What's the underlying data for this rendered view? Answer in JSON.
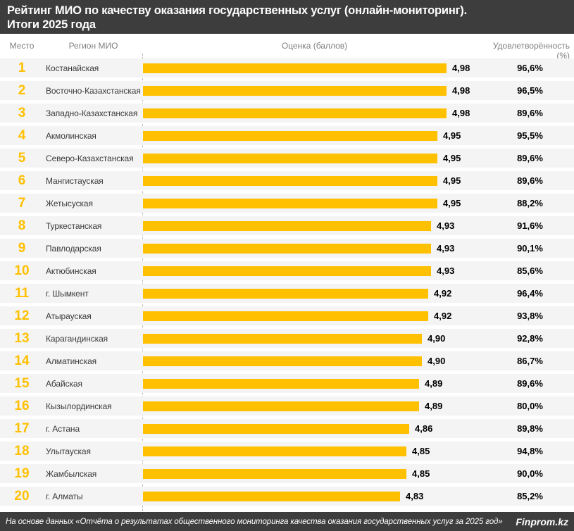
{
  "header": {
    "title_line1": "Рейтинг МИО по качеству оказания государственных услуг (онлайн-мониторинг).",
    "title_line2": "Итоги 2025 года"
  },
  "columns": {
    "rank": "Место",
    "region": "Регион МИО",
    "score": "Оценка (баллов)",
    "satisfaction": "Удовлетворённость (%)"
  },
  "chart_data": {
    "type": "bar",
    "orientation": "horizontal",
    "title": "Рейтинг МИО по качеству оказания государственных услуг (онлайн-мониторинг). Итоги 2025 года",
    "xlabel": "Оценка (баллов)",
    "ylabel": "Регион МИО",
    "axis": {
      "min": 4.0,
      "max": 5.0
    },
    "grid": false,
    "rows": [
      {
        "rank": "1",
        "region": "Костанайская",
        "score": 4.98,
        "score_label": "4,98",
        "satisfaction": 96.6,
        "satisfaction_label": "96,6%"
      },
      {
        "rank": "2",
        "region": "Восточно-Казахстанская",
        "score": 4.98,
        "score_label": "4,98",
        "satisfaction": 96.5,
        "satisfaction_label": "96,5%"
      },
      {
        "rank": "3",
        "region": "Западно-Казахстанская",
        "score": 4.98,
        "score_label": "4,98",
        "satisfaction": 89.6,
        "satisfaction_label": "89,6%"
      },
      {
        "rank": "4",
        "region": "Акмолинская",
        "score": 4.95,
        "score_label": "4,95",
        "satisfaction": 95.5,
        "satisfaction_label": "95,5%"
      },
      {
        "rank": "5",
        "region": "Северо-Казахстанская",
        "score": 4.95,
        "score_label": "4,95",
        "satisfaction": 89.6,
        "satisfaction_label": "89,6%"
      },
      {
        "rank": "6",
        "region": "Мангистауская",
        "score": 4.95,
        "score_label": "4,95",
        "satisfaction": 89.6,
        "satisfaction_label": "89,6%"
      },
      {
        "rank": "7",
        "region": "Жетысуская",
        "score": 4.95,
        "score_label": "4,95",
        "satisfaction": 88.2,
        "satisfaction_label": "88,2%"
      },
      {
        "rank": "8",
        "region": "Туркестанская",
        "score": 4.93,
        "score_label": "4,93",
        "satisfaction": 91.6,
        "satisfaction_label": "91,6%"
      },
      {
        "rank": "9",
        "region": "Павлодарская",
        "score": 4.93,
        "score_label": "4,93",
        "satisfaction": 90.1,
        "satisfaction_label": "90,1%"
      },
      {
        "rank": "10",
        "region": "Актюбинская",
        "score": 4.93,
        "score_label": "4,93",
        "satisfaction": 85.6,
        "satisfaction_label": "85,6%"
      },
      {
        "rank": "11",
        "region": "г. Шымкент",
        "score": 4.92,
        "score_label": "4,92",
        "satisfaction": 96.4,
        "satisfaction_label": "96,4%"
      },
      {
        "rank": "12",
        "region": "Атырауская",
        "score": 4.92,
        "score_label": "4,92",
        "satisfaction": 93.8,
        "satisfaction_label": "93,8%"
      },
      {
        "rank": "13",
        "region": "Карагандинская",
        "score": 4.9,
        "score_label": "4,90",
        "satisfaction": 92.8,
        "satisfaction_label": "92,8%"
      },
      {
        "rank": "14",
        "region": "Алматинская",
        "score": 4.9,
        "score_label": "4,90",
        "satisfaction": 86.7,
        "satisfaction_label": "86,7%"
      },
      {
        "rank": "15",
        "region": "Абайская",
        "score": 4.89,
        "score_label": "4,89",
        "satisfaction": 89.6,
        "satisfaction_label": "89,6%"
      },
      {
        "rank": "16",
        "region": "Кызылординская",
        "score": 4.89,
        "score_label": "4,89",
        "satisfaction": 80.0,
        "satisfaction_label": "80,0%"
      },
      {
        "rank": "17",
        "region": "г. Астана",
        "score": 4.86,
        "score_label": "4,86",
        "satisfaction": 89.8,
        "satisfaction_label": "89,8%"
      },
      {
        "rank": "18",
        "region": "Улытауская",
        "score": 4.85,
        "score_label": "4,85",
        "satisfaction": 94.8,
        "satisfaction_label": "94,8%"
      },
      {
        "rank": "19",
        "region": "Жамбылская",
        "score": 4.85,
        "score_label": "4,85",
        "satisfaction": 90.0,
        "satisfaction_label": "90,0%"
      },
      {
        "rank": "20",
        "region": "г. Алматы",
        "score": 4.83,
        "score_label": "4,83",
        "satisfaction": 85.2,
        "satisfaction_label": "85,2%"
      }
    ]
  },
  "footer": {
    "source": "На основе данных «Отчёта о результатах общественного мониторинга качества оказания государственных услуг за 2025 год»",
    "brand": "Finprom.kz"
  },
  "colors": {
    "accent": "#FFC000",
    "header_bg": "#3D3D3D",
    "row_bg": "#F4F4F4",
    "column_header_text": "#7F7F7F",
    "axis_dash": "#B5B5B5"
  }
}
